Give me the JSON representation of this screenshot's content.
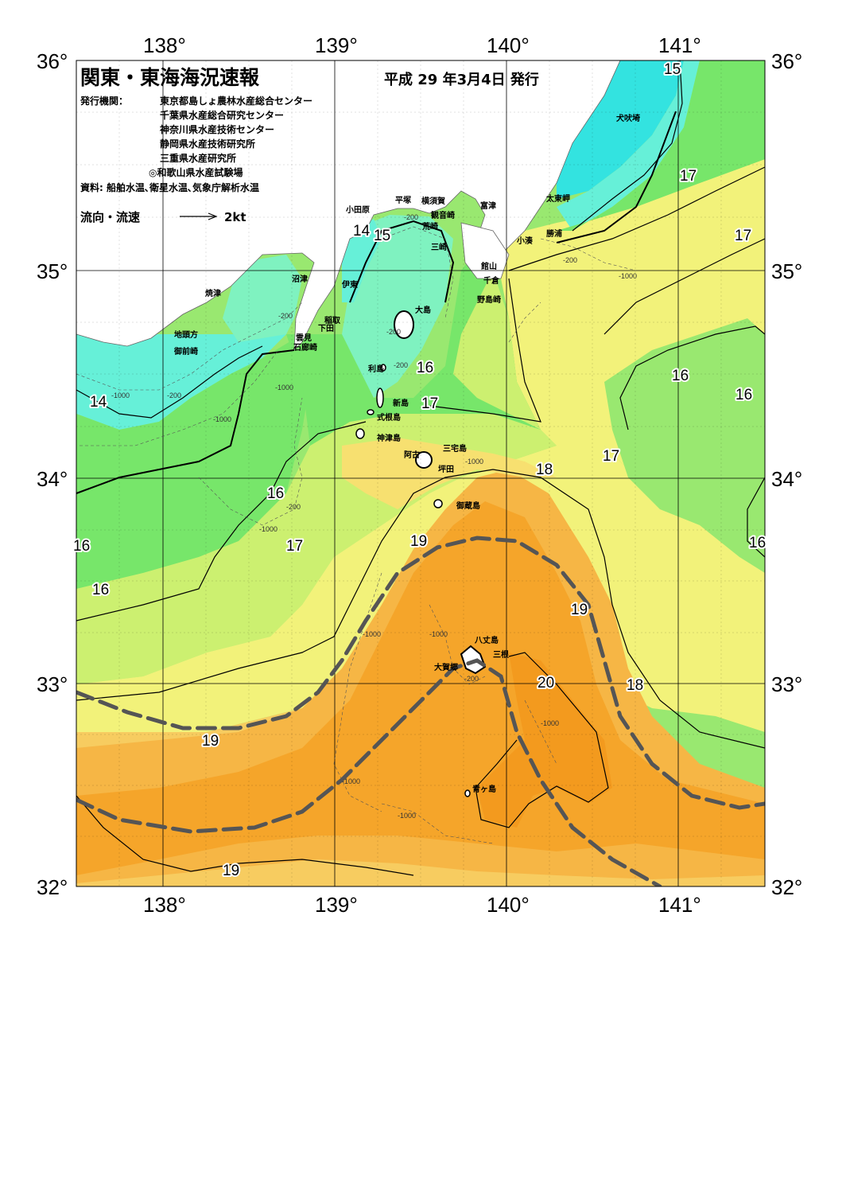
{
  "header": {
    "title": "関東・東海海況速報",
    "issue_date": "平成 29 年3月4日 発行",
    "issuer_label": "発行機関：",
    "issuers": [
      "東京都島しょ農林水産総合センター",
      "千葉県水産総合研究センター",
      "神奈川県水産技術センター",
      "静岡県水産技術研究所",
      "三重県水産研究所",
      "◎和歌山県水産試験場"
    ],
    "sources": "資料: 船舶水温､衛星水温､気象庁解析水温",
    "current_legend_label": "流向・流速",
    "current_legend_speed": "2kt"
  },
  "axes": {
    "lon_ticks": [
      "138°",
      "139°",
      "140°",
      "141°"
    ],
    "lat_ticks": [
      "36°",
      "35°",
      "34°",
      "33°",
      "32°"
    ]
  },
  "colors": {
    "t14": "#33e3e0",
    "t14b": "#66f0d8",
    "t15": "#7ff2c0",
    "t16": "#77e66a",
    "t16b": "#99e870",
    "t17": "#ccf070",
    "t17b": "#f2f27a",
    "t18": "#f7e070",
    "t18b": "#f7cc60",
    "t19": "#f6b645",
    "t19b": "#f5a52a",
    "t20": "#f39a1e",
    "land": "#ffffff",
    "kuroshio_axis": "#555555"
  },
  "place_names": {
    "inubozaki": "犬吠埼",
    "taitomisaki": "太東岬",
    "katsuura": "勝浦",
    "kominato": "小湊",
    "futtsu": "富津",
    "yokosuka": "横須賀",
    "kannonzaki": "観音崎",
    "arasaki": "荒崎",
    "misaki": "三崎",
    "hiratsuka": "平塚",
    "odawara": "小田原",
    "tateyama": "館山",
    "chikura": "千倉",
    "nojimazaki": "野島崎",
    "ito": "伊東",
    "inatori": "稲取",
    "shimoda": "下田",
    "kumomi": "雲見",
    "irozaki": "石廊崎",
    "numazu": "沼津",
    "yaizu": "焼津",
    "jitokata": "地頭方",
    "omaezaki": "御前崎",
    "oshima": "大島",
    "toshima": "利島",
    "niijima": "新島",
    "shikinejima": "式根島",
    "kozushima": "神津島",
    "miyakejima": "三宅島",
    "ako": "阿古",
    "tsubota": "坪田",
    "mikurajima": "御蔵島",
    "hachijojima": "八丈島",
    "mitsune": "三根",
    "okago": "大賀郷",
    "aogashima": "青ヶ島"
  },
  "isotherm_labels": [
    "15",
    "17",
    "17",
    "14",
    "15",
    "16",
    "17",
    "16",
    "16",
    "14",
    "16",
    "17",
    "18",
    "17",
    "16",
    "16",
    "19",
    "19",
    "18",
    "20",
    "19",
    "19",
    "16"
  ],
  "depth_labels": [
    "-200",
    "-1000",
    "-200",
    "-1000",
    "-200",
    "-1000",
    "-200",
    "-1000",
    "-200",
    "-200",
    "-1000",
    "-200",
    "-1000",
    "-1000",
    "-1000",
    "-1000",
    "-200",
    "-1000",
    "-1000"
  ]
}
